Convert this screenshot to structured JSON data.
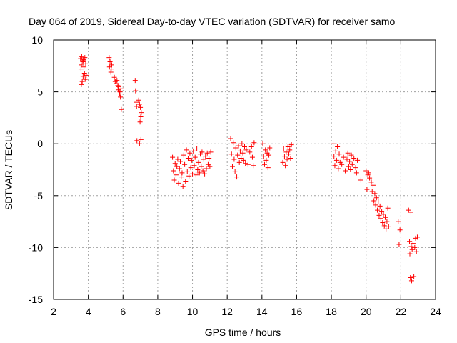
{
  "chart_data": {
    "type": "scatter",
    "title": "Day 064 of 2019, Sidereal Day-to-day VTEC variation (SDTVAR) for receiver samo",
    "xlabel": "GPS time / hours",
    "ylabel": "SDTVAR / TECUs",
    "xlim": [
      2,
      24
    ],
    "ylim": [
      -15,
      10
    ],
    "xticks": [
      2,
      4,
      6,
      8,
      10,
      12,
      14,
      16,
      18,
      20,
      22,
      24
    ],
    "yticks": [
      -15,
      -10,
      -5,
      0,
      5,
      10
    ],
    "grid": true,
    "marker": "+",
    "series": [
      {
        "name": "SDTVAR",
        "color": "#ff0000",
        "points": [
          [
            3.55,
            8.2
          ],
          [
            3.6,
            7.6
          ],
          [
            3.62,
            8.4
          ],
          [
            3.65,
            6.0
          ],
          [
            3.68,
            7.9
          ],
          [
            3.7,
            6.5
          ],
          [
            3.72,
            8.1
          ],
          [
            3.75,
            7.4
          ],
          [
            3.78,
            6.8
          ],
          [
            3.8,
            8.3
          ],
          [
            3.82,
            6.2
          ],
          [
            3.85,
            7.7
          ],
          [
            3.6,
            5.7
          ],
          [
            3.7,
            8.0
          ],
          [
            3.58,
            7.2
          ],
          [
            3.88,
            6.6
          ],
          [
            5.2,
            8.3
          ],
          [
            5.22,
            7.4
          ],
          [
            5.25,
            7.9
          ],
          [
            5.3,
            6.9
          ],
          [
            5.32,
            7.2
          ],
          [
            5.35,
            7.6
          ],
          [
            5.5,
            6.4
          ],
          [
            5.55,
            6.0
          ],
          [
            5.6,
            5.8
          ],
          [
            5.65,
            6.1
          ],
          [
            5.7,
            5.6
          ],
          [
            5.72,
            5.2
          ],
          [
            5.75,
            5.5
          ],
          [
            5.8,
            4.8
          ],
          [
            5.82,
            5.0
          ],
          [
            5.85,
            4.5
          ],
          [
            5.88,
            5.3
          ],
          [
            5.9,
            3.3
          ],
          [
            6.7,
            6.1
          ],
          [
            6.72,
            5.1
          ],
          [
            6.75,
            4.0
          ],
          [
            6.78,
            3.6
          ],
          [
            6.8,
            0.3
          ],
          [
            6.9,
            4.2
          ],
          [
            6.95,
            3.8
          ],
          [
            7.0,
            3.5
          ],
          [
            7.02,
            2.6
          ],
          [
            7.05,
            3.0
          ],
          [
            6.98,
            2.1
          ],
          [
            7.03,
            0.4
          ],
          [
            6.95,
            0.0
          ],
          [
            8.85,
            -1.3
          ],
          [
            8.9,
            -2.6
          ],
          [
            8.95,
            -3.5
          ],
          [
            9.0,
            -1.9
          ],
          [
            9.05,
            -3.0
          ],
          [
            9.1,
            -2.2
          ],
          [
            9.15,
            -1.5
          ],
          [
            9.2,
            -3.8
          ],
          [
            9.25,
            -2.4
          ],
          [
            9.3,
            -1.7
          ],
          [
            9.35,
            -3.2
          ],
          [
            9.4,
            -2.8
          ],
          [
            9.45,
            -4.1
          ],
          [
            9.5,
            -1.1
          ],
          [
            9.55,
            -2.0
          ],
          [
            9.6,
            -3.6
          ],
          [
            9.65,
            -0.6
          ],
          [
            9.7,
            -2.7
          ],
          [
            9.75,
            -1.4
          ],
          [
            9.8,
            -3.1
          ],
          [
            9.85,
            -0.9
          ],
          [
            9.9,
            -2.3
          ],
          [
            9.95,
            -1.6
          ],
          [
            10.0,
            -2.9
          ],
          [
            10.05,
            -0.7
          ],
          [
            10.1,
            -2.1
          ],
          [
            10.15,
            -1.3
          ],
          [
            10.2,
            -3.0
          ],
          [
            10.25,
            -0.5
          ],
          [
            10.3,
            -2.5
          ],
          [
            10.35,
            -1.8
          ],
          [
            10.4,
            -2.8
          ],
          [
            10.45,
            -1.0
          ],
          [
            10.5,
            -2.2
          ],
          [
            10.55,
            -0.8
          ],
          [
            10.6,
            -2.6
          ],
          [
            10.65,
            -1.5
          ],
          [
            10.7,
            -2.9
          ],
          [
            10.75,
            -1.2
          ],
          [
            10.8,
            -2.4
          ],
          [
            10.85,
            -0.9
          ],
          [
            10.9,
            -2.0
          ],
          [
            10.95,
            -1.4
          ],
          [
            11.0,
            -2.2
          ],
          [
            11.05,
            -0.8
          ],
          [
            12.2,
            0.5
          ],
          [
            12.25,
            -1.0
          ],
          [
            12.3,
            -2.2
          ],
          [
            12.35,
            0.1
          ],
          [
            12.4,
            -1.5
          ],
          [
            12.45,
            -2.7
          ],
          [
            12.5,
            -0.4
          ],
          [
            12.55,
            -3.2
          ],
          [
            12.6,
            -1.1
          ],
          [
            12.65,
            -0.2
          ],
          [
            12.7,
            -1.8
          ],
          [
            12.75,
            -0.7
          ],
          [
            12.8,
            -1.4
          ],
          [
            12.85,
            0.0
          ],
          [
            12.9,
            -0.9
          ],
          [
            12.95,
            -1.6
          ],
          [
            13.0,
            -0.3
          ],
          [
            13.05,
            -1.9
          ],
          [
            13.1,
            -0.6
          ],
          [
            13.2,
            -2.0
          ],
          [
            13.3,
            -0.8
          ],
          [
            13.4,
            -0.3
          ],
          [
            13.45,
            -1.3
          ],
          [
            13.5,
            -2.1
          ],
          [
            13.55,
            0.1
          ],
          [
            14.05,
            0.0
          ],
          [
            14.1,
            -1.2
          ],
          [
            14.15,
            -2.0
          ],
          [
            14.2,
            -0.6
          ],
          [
            14.25,
            -1.6
          ],
          [
            14.3,
            -0.9
          ],
          [
            14.35,
            -2.3
          ],
          [
            14.4,
            -1.1
          ],
          [
            14.45,
            -0.4
          ],
          [
            15.2,
            -1.8
          ],
          [
            15.25,
            -0.5
          ],
          [
            15.3,
            -1.2
          ],
          [
            15.35,
            -2.1
          ],
          [
            15.4,
            -0.8
          ],
          [
            15.45,
            -1.5
          ],
          [
            15.5,
            -0.3
          ],
          [
            15.55,
            -1.0
          ],
          [
            15.6,
            -0.6
          ],
          [
            15.65,
            -1.4
          ],
          [
            15.7,
            -0.1
          ],
          [
            18.1,
            0.0
          ],
          [
            18.15,
            -1.2
          ],
          [
            18.2,
            -2.1
          ],
          [
            18.25,
            -0.7
          ],
          [
            18.3,
            -1.6
          ],
          [
            18.35,
            -0.3
          ],
          [
            18.4,
            -2.4
          ],
          [
            18.45,
            -1.0
          ],
          [
            18.5,
            -1.8
          ],
          [
            18.6,
            -2.0
          ],
          [
            18.7,
            -1.3
          ],
          [
            18.8,
            -2.6
          ],
          [
            18.9,
            -1.5
          ],
          [
            18.95,
            -0.9
          ],
          [
            19.0,
            -2.2
          ],
          [
            19.05,
            -1.7
          ],
          [
            19.1,
            -2.5
          ],
          [
            19.15,
            -1.1
          ],
          [
            19.2,
            -2.0
          ],
          [
            19.3,
            -1.4
          ],
          [
            19.4,
            -2.3
          ],
          [
            19.45,
            -2.8
          ],
          [
            19.5,
            -1.6
          ],
          [
            19.7,
            -3.5
          ],
          [
            20.0,
            -2.6
          ],
          [
            20.05,
            -4.4
          ],
          [
            20.1,
            -3.0
          ],
          [
            20.15,
            -2.8
          ],
          [
            20.2,
            -3.3
          ],
          [
            20.3,
            -3.7
          ],
          [
            20.35,
            -4.6
          ],
          [
            20.4,
            -4.0
          ],
          [
            20.45,
            -5.5
          ],
          [
            20.5,
            -4.8
          ],
          [
            20.55,
            -5.9
          ],
          [
            20.6,
            -5.2
          ],
          [
            20.65,
            -6.4
          ],
          [
            20.7,
            -5.6
          ],
          [
            20.75,
            -6.9
          ],
          [
            20.8,
            -6.0
          ],
          [
            20.85,
            -7.2
          ],
          [
            20.9,
            -6.5
          ],
          [
            20.95,
            -7.6
          ],
          [
            21.0,
            -6.8
          ],
          [
            21.05,
            -7.9
          ],
          [
            21.1,
            -7.1
          ],
          [
            21.15,
            -8.2
          ],
          [
            21.2,
            -7.5
          ],
          [
            21.25,
            -6.2
          ],
          [
            21.3,
            -8.0
          ],
          [
            21.85,
            -7.5
          ],
          [
            21.9,
            -9.7
          ],
          [
            21.95,
            -8.3
          ],
          [
            22.45,
            -6.4
          ],
          [
            22.5,
            -9.4
          ],
          [
            22.52,
            -10.6
          ],
          [
            22.55,
            -12.9
          ],
          [
            22.58,
            -6.6
          ],
          [
            22.6,
            -9.9
          ],
          [
            22.62,
            -13.2
          ],
          [
            22.65,
            -10.2
          ],
          [
            22.7,
            -9.6
          ],
          [
            22.75,
            -12.8
          ],
          [
            22.8,
            -10.0
          ],
          [
            22.85,
            -9.1
          ],
          [
            22.9,
            -10.4
          ],
          [
            22.95,
            -9.0
          ]
        ]
      }
    ]
  }
}
